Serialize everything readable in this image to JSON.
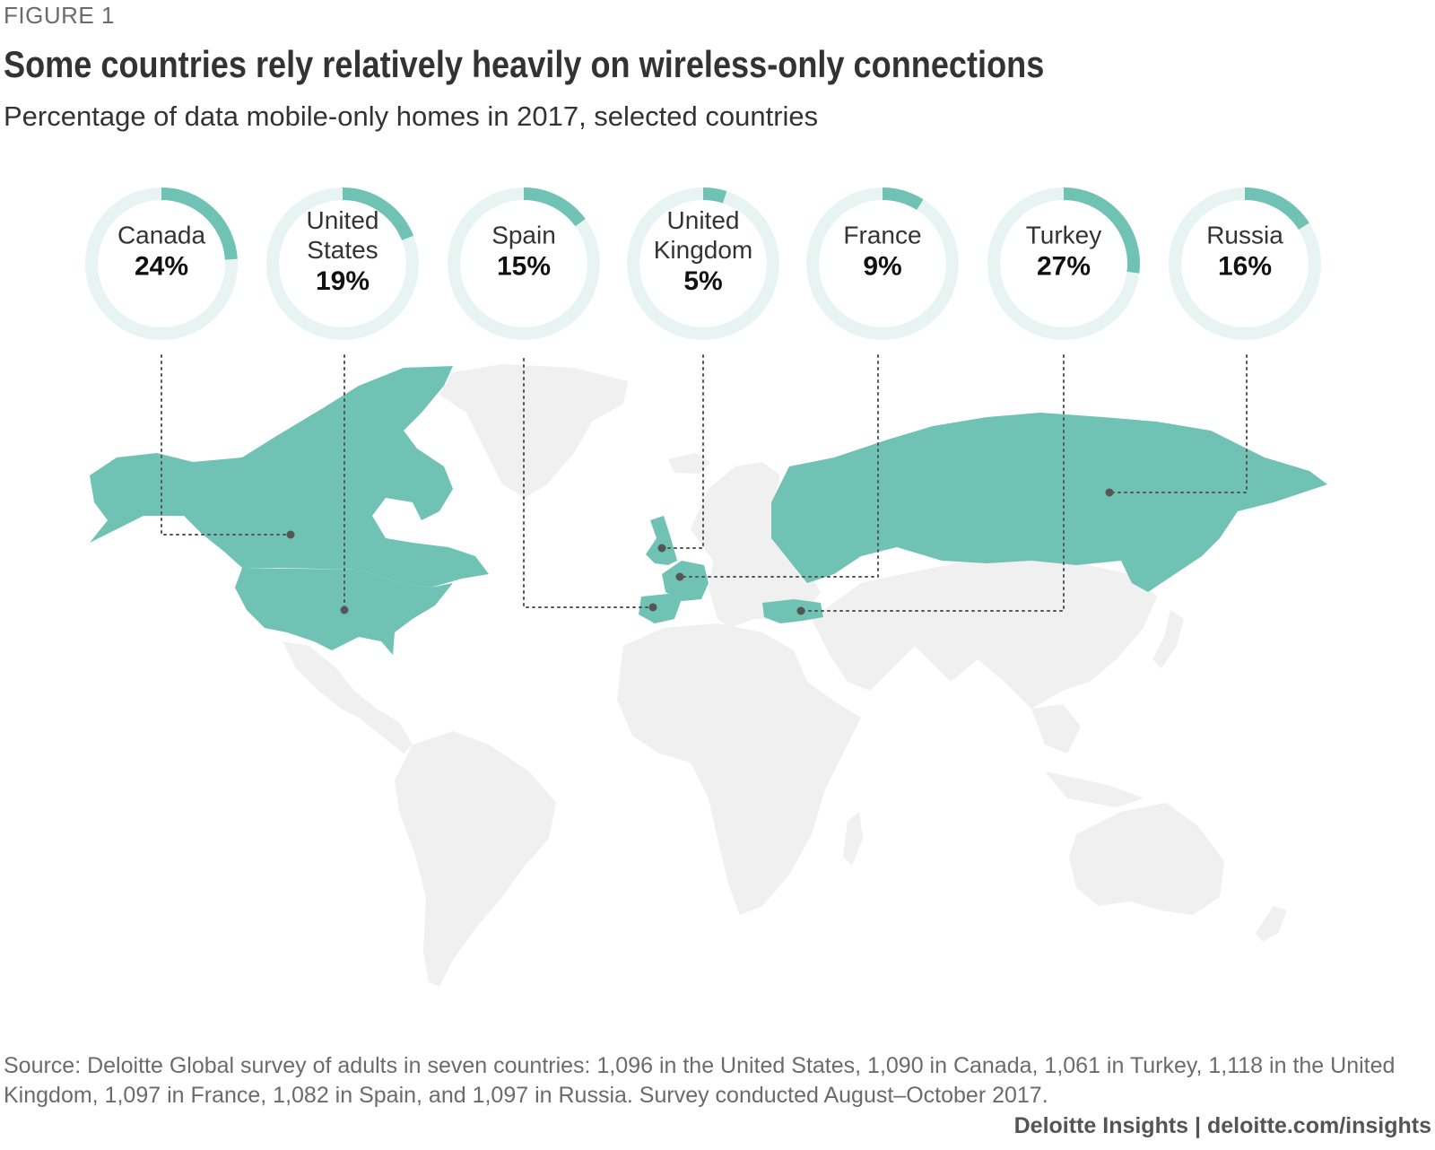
{
  "header": {
    "figure_label": "FIGURE 1",
    "title": "Some countries rely relatively heavily on wireless-only connections",
    "subtitle": "Percentage of data mobile-only homes in 2017, selected countries"
  },
  "colors": {
    "accent": "#70c2b4",
    "ring_track": "#e8f4f1",
    "land": "#f0f0f0",
    "leader": "#555555"
  },
  "chart_data": {
    "type": "donut-map",
    "unit": "%",
    "series": [
      {
        "name": "Canada",
        "label_lines": [
          "Canada"
        ],
        "value": 24,
        "value_label": "24%"
      },
      {
        "name": "United States",
        "label_lines": [
          "United",
          "States"
        ],
        "value": 19,
        "value_label": "19%"
      },
      {
        "name": "Spain",
        "label_lines": [
          "Spain"
        ],
        "value": 15,
        "value_label": "15%"
      },
      {
        "name": "United Kingdom",
        "label_lines": [
          "United",
          "Kingdom"
        ],
        "value": 5,
        "value_label": "5%"
      },
      {
        "name": "France",
        "label_lines": [
          "France"
        ],
        "value": 9,
        "value_label": "9%"
      },
      {
        "name": "Turkey",
        "label_lines": [
          "Turkey"
        ],
        "value": 27,
        "value_label": "27%"
      },
      {
        "name": "Russia",
        "label_lines": [
          "Russia"
        ],
        "value": 16,
        "value_label": "16%"
      }
    ]
  },
  "footer": {
    "source": "Source: Deloitte Global survey of adults in seven countries: 1,096 in the United States, 1,090 in Canada, 1,061 in Turkey, 1,118 in the United Kingdom, 1,097 in France, 1,082 in Spain, and 1,097 in Russia. Survey conducted August–October 2017.",
    "credit": "Deloitte Insights | deloitte.com/insights"
  }
}
